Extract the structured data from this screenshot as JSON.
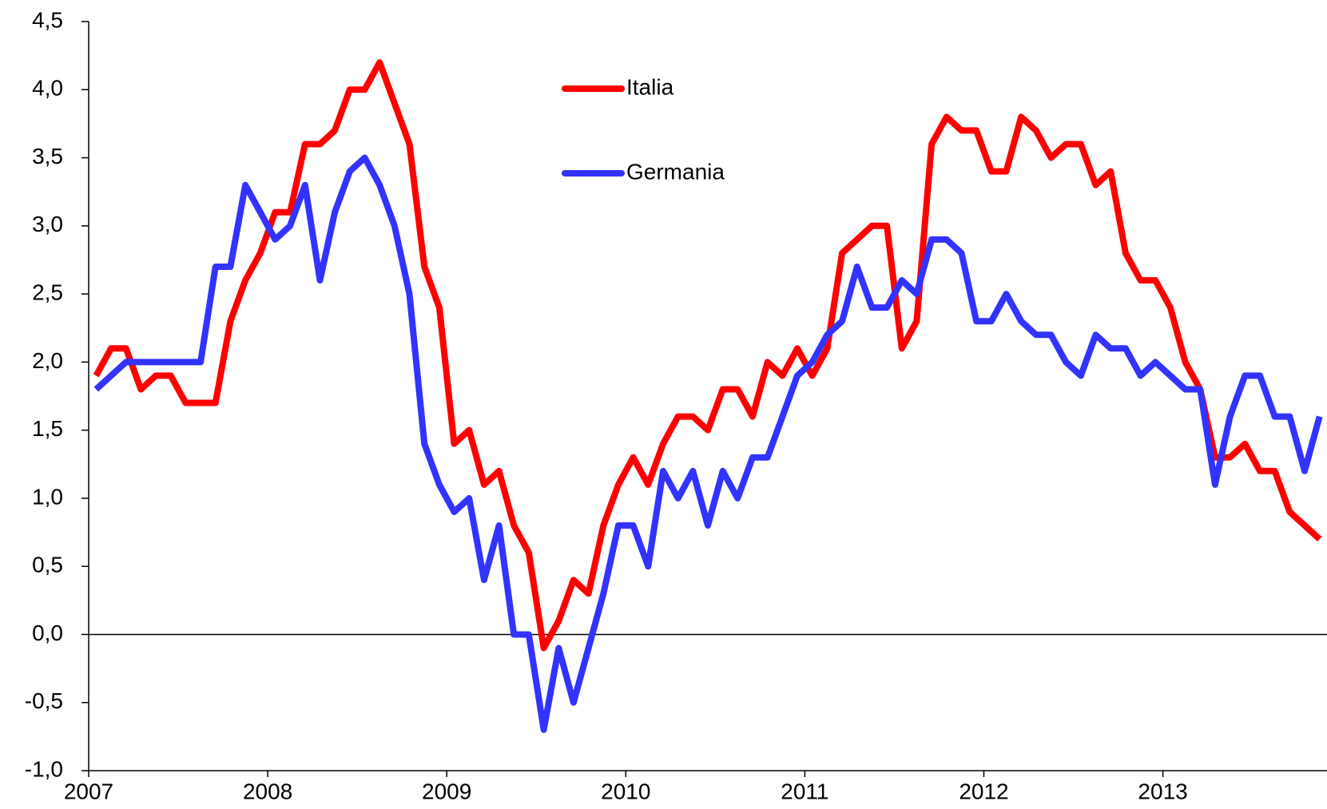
{
  "chart_data": {
    "type": "line",
    "categories": [
      "2007",
      null,
      null,
      null,
      null,
      null,
      null,
      null,
      null,
      null,
      null,
      null,
      "2008",
      null,
      null,
      null,
      null,
      null,
      null,
      null,
      null,
      null,
      null,
      null,
      "2009",
      null,
      null,
      null,
      null,
      null,
      null,
      null,
      null,
      null,
      null,
      null,
      "2010",
      null,
      null,
      null,
      null,
      null,
      null,
      null,
      null,
      null,
      null,
      null,
      "2011",
      null,
      null,
      null,
      null,
      null,
      null,
      null,
      null,
      null,
      null,
      null,
      "2012",
      null,
      null,
      null,
      null,
      null,
      null,
      null,
      null,
      null,
      null,
      null,
      "2013",
      null,
      null,
      null,
      null,
      null,
      null,
      null,
      null,
      null,
      null
    ],
    "series": [
      {
        "name": "Italia",
        "color": "#ff0000",
        "values": [
          1.9,
          2.1,
          2.1,
          1.8,
          1.9,
          1.9,
          1.7,
          1.7,
          1.7,
          2.3,
          2.6,
          2.8,
          3.1,
          3.1,
          3.6,
          3.6,
          3.7,
          4.0,
          4.0,
          4.2,
          3.9,
          3.6,
          2.7,
          2.4,
          1.4,
          1.5,
          1.1,
          1.2,
          0.8,
          0.6,
          -0.1,
          0.1,
          0.4,
          0.3,
          0.8,
          1.1,
          1.3,
          1.1,
          1.4,
          1.6,
          1.6,
          1.5,
          1.8,
          1.8,
          1.6,
          2.0,
          1.9,
          2.1,
          1.9,
          2.1,
          2.8,
          2.9,
          3.0,
          3.0,
          2.1,
          2.3,
          3.6,
          3.8,
          3.7,
          3.7,
          3.4,
          3.4,
          3.8,
          3.7,
          3.5,
          3.6,
          3.6,
          3.3,
          3.4,
          2.8,
          2.6,
          2.6,
          2.4,
          2.0,
          1.8,
          1.3,
          1.3,
          1.4,
          1.2,
          1.2,
          0.9,
          0.8,
          0.7
        ]
      },
      {
        "name": "Germania",
        "color": "#3333ff",
        "values": [
          1.8,
          1.9,
          2.0,
          2.0,
          2.0,
          2.0,
          2.0,
          2.0,
          2.7,
          2.7,
          3.3,
          3.1,
          2.9,
          3.0,
          3.3,
          2.6,
          3.1,
          3.4,
          3.5,
          3.3,
          3.0,
          2.5,
          1.4,
          1.1,
          0.9,
          1.0,
          0.4,
          0.8,
          0.0,
          0.0,
          -0.7,
          -0.1,
          -0.5,
          -0.1,
          0.3,
          0.8,
          0.8,
          0.5,
          1.2,
          1.0,
          1.2,
          0.8,
          1.2,
          1.0,
          1.3,
          1.3,
          1.6,
          1.9,
          2.0,
          2.2,
          2.3,
          2.7,
          2.4,
          2.4,
          2.6,
          2.5,
          2.9,
          2.9,
          2.8,
          2.3,
          2.3,
          2.5,
          2.3,
          2.2,
          2.2,
          2.0,
          1.9,
          2.2,
          2.1,
          2.1,
          1.9,
          2.0,
          1.9,
          1.8,
          1.8,
          1.1,
          1.6,
          1.9,
          1.9,
          1.6,
          1.6,
          1.2,
          1.6
        ]
      }
    ],
    "ylim": [
      -1.0,
      4.5
    ],
    "yticks": [
      {
        "value": -1.0,
        "label": "-1,0"
      },
      {
        "value": -0.5,
        "label": "-0,5"
      },
      {
        "value": 0.0,
        "label": "0,0"
      },
      {
        "value": 0.5,
        "label": "0,5"
      },
      {
        "value": 1.0,
        "label": "1,0"
      },
      {
        "value": 1.5,
        "label": "1,5"
      },
      {
        "value": 2.0,
        "label": "2,0"
      },
      {
        "value": 2.5,
        "label": "2,5"
      },
      {
        "value": 3.0,
        "label": "3,0"
      },
      {
        "value": 3.5,
        "label": "3,5"
      },
      {
        "value": 4.0,
        "label": "4,0"
      },
      {
        "value": 4.5,
        "label": "4,5"
      }
    ],
    "grid": false
  }
}
